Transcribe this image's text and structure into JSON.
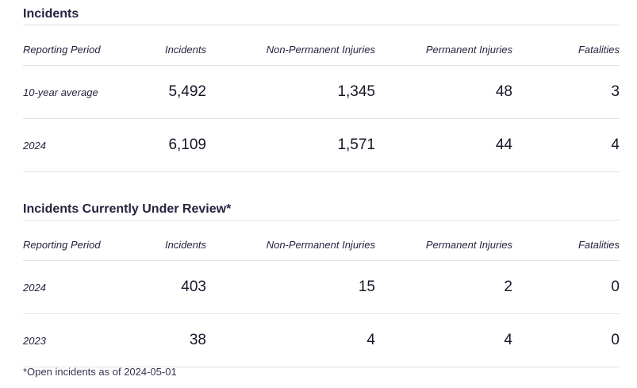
{
  "sections": [
    {
      "title": "Incidents",
      "columns": [
        "Reporting Period",
        "Incidents",
        "Non-Permanent Injuries",
        "Permanent Injuries",
        "Fatalities"
      ],
      "rows": [
        {
          "period": "10-year average",
          "incidents": "5,492",
          "non_permanent": "1,345",
          "permanent": "48",
          "fatalities": "3"
        },
        {
          "period": "2024",
          "incidents": "6,109",
          "non_permanent": "1,571",
          "permanent": "44",
          "fatalities": "4"
        }
      ]
    },
    {
      "title": "Incidents Currently Under Review*",
      "columns": [
        "Reporting Period",
        "Incidents",
        "Non-Permanent Injuries",
        "Permanent Injuries",
        "Fatalities"
      ],
      "rows": [
        {
          "period": "2024",
          "incidents": "403",
          "non_permanent": "15",
          "permanent": "2",
          "fatalities": "0"
        },
        {
          "period": "2023",
          "incidents": "38",
          "non_permanent": "4",
          "permanent": "4",
          "fatalities": "0"
        }
      ]
    }
  ],
  "footnote": "*Open incidents as of 2024-05-01"
}
